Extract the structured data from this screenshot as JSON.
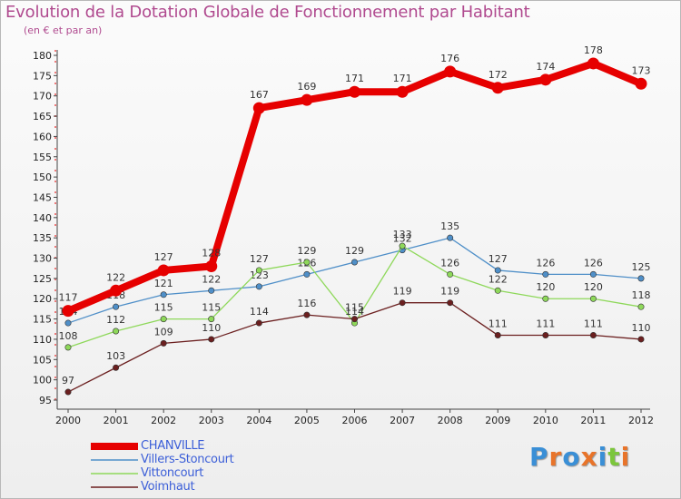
{
  "title": "Evolution de la Dotation Globale de Fonctionnement par Habitant",
  "subtitle": "(en € et par an)",
  "brand": {
    "text": "Proxiti",
    "letter_colors": [
      "#3a8fd6",
      "#e8742a",
      "#3a8fd6",
      "#e8742a",
      "#3a8fd6",
      "#7cc63c",
      "#e8742a"
    ]
  },
  "chart_data": {
    "type": "line",
    "title": "Evolution de la Dotation Globale de Fonctionnement par Habitant",
    "subtitle": "(en € et par an)",
    "xlabel": "",
    "ylabel": "",
    "ylim": [
      95,
      180
    ],
    "y_ticks": [
      95,
      100,
      105,
      110,
      115,
      120,
      125,
      130,
      135,
      140,
      145,
      150,
      155,
      160,
      165,
      170,
      175,
      180
    ],
    "categories": [
      "2000",
      "2001",
      "2002",
      "2003",
      "2004",
      "2005",
      "2006",
      "2007",
      "2008",
      "2009",
      "2010",
      "2011",
      "2012"
    ],
    "grid": false,
    "legend_position": "bottom-left",
    "series": [
      {
        "name": "CHANVILLE",
        "color": "#e60000",
        "emphasis": true,
        "values": [
          117,
          122,
          127,
          128,
          167,
          169,
          171,
          171,
          176,
          172,
          174,
          178,
          173
        ]
      },
      {
        "name": "Villers-Stoncourt",
        "color": "#4f8fc8",
        "emphasis": false,
        "values": [
          114,
          118,
          121,
          122,
          123,
          126,
          129,
          132,
          135,
          127,
          126,
          126,
          125
        ]
      },
      {
        "name": "Vittoncourt",
        "color": "#8ed85a",
        "emphasis": false,
        "values": [
          108,
          112,
          115,
          115,
          127,
          129,
          114,
          133,
          126,
          122,
          120,
          120,
          118
        ]
      },
      {
        "name": "Voimhaut",
        "color": "#6b1f1f",
        "emphasis": false,
        "values": [
          97,
          103,
          109,
          110,
          114,
          116,
          115,
          119,
          119,
          111,
          111,
          111,
          110
        ]
      }
    ]
  }
}
